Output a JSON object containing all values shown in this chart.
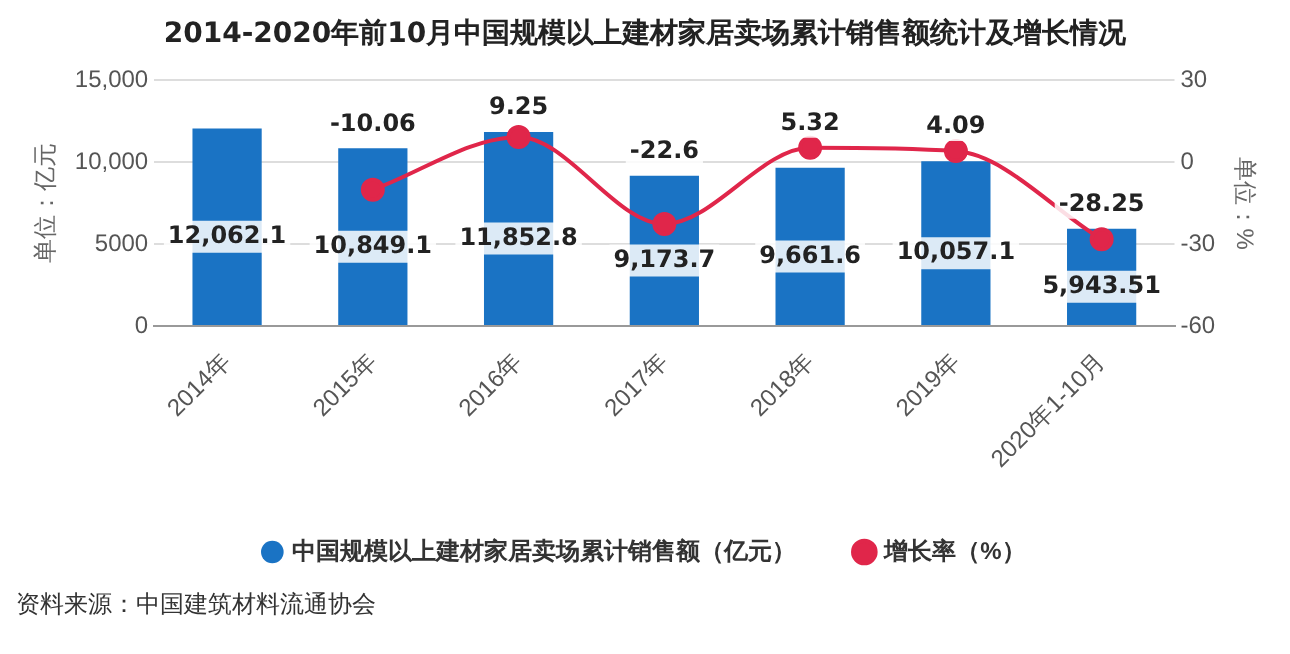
{
  "chart_data": {
    "type": "bar",
    "title": "2014-2020年前10月中国规模以上建材家居卖场累计销售额统计及增长情况",
    "categories": [
      "2014年",
      "2015年",
      "2016年",
      "2017年",
      "2018年",
      "2019年",
      "2020年1-10月"
    ],
    "series": [
      {
        "name": "中国规模以上建材家居卖场累计销售额（亿元）",
        "color": "#1a73c4",
        "values": [
          12062.1,
          10849.1,
          11852.8,
          9173.7,
          9661.6,
          10057.1,
          5943.51
        ],
        "value_labels": [
          "12,062.1",
          "10,849.1",
          "11,852.8",
          "9,173.7",
          "9,661.6",
          "10,057.1",
          "5,943.51"
        ]
      },
      {
        "name": "增长率（%）",
        "type": "line",
        "axis": "y2",
        "color": "#e0264a",
        "marker": "circle",
        "values": [
          null,
          -10.06,
          9.25,
          -22.6,
          5.32,
          4.09,
          -28.25
        ],
        "value_labels": [
          null,
          "-10.06",
          "9.25",
          "-22.6",
          "5.32",
          "4.09",
          "-28.25"
        ]
      }
    ],
    "ylabel": "单位：亿元",
    "y2label": "单位：%",
    "ylim": [
      0,
      15000
    ],
    "yticks": [
      0,
      5000,
      {
        "value": 10000,
        "label": "10,000"
      },
      {
        "value": 15000,
        "label": "15,000"
      }
    ],
    "y2lim": [
      -60,
      30
    ],
    "y2ticks": [
      -60,
      -30,
      0,
      30
    ],
    "grid": "y",
    "legend": "bottom",
    "annotations": [
      "资料来源：中国建筑材料流通协会"
    ]
  }
}
